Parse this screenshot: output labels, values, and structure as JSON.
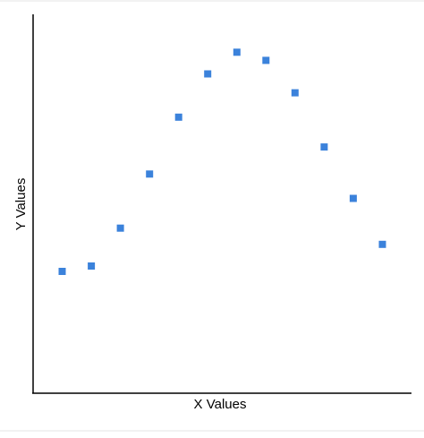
{
  "chart_data": {
    "type": "scatter",
    "title": "",
    "xlabel": "X Values",
    "ylabel": "Y Values",
    "marker": "square",
    "grid": false,
    "legend": "none",
    "xlim": [
      0,
      13
    ],
    "ylim": [
      0,
      14
    ],
    "series": [
      {
        "x": [
          1,
          2,
          3,
          4,
          5,
          6,
          7,
          8,
          9,
          10,
          11,
          12
        ],
        "y": [
          4.5,
          4.7,
          6.1,
          8.1,
          10.2,
          11.8,
          12.6,
          12.3,
          11.1,
          9.1,
          7.2,
          5.5
        ]
      }
    ],
    "colors": {
      "point": "#3b82db",
      "axis": "#000000",
      "frame": "#e6e6e6"
    }
  }
}
